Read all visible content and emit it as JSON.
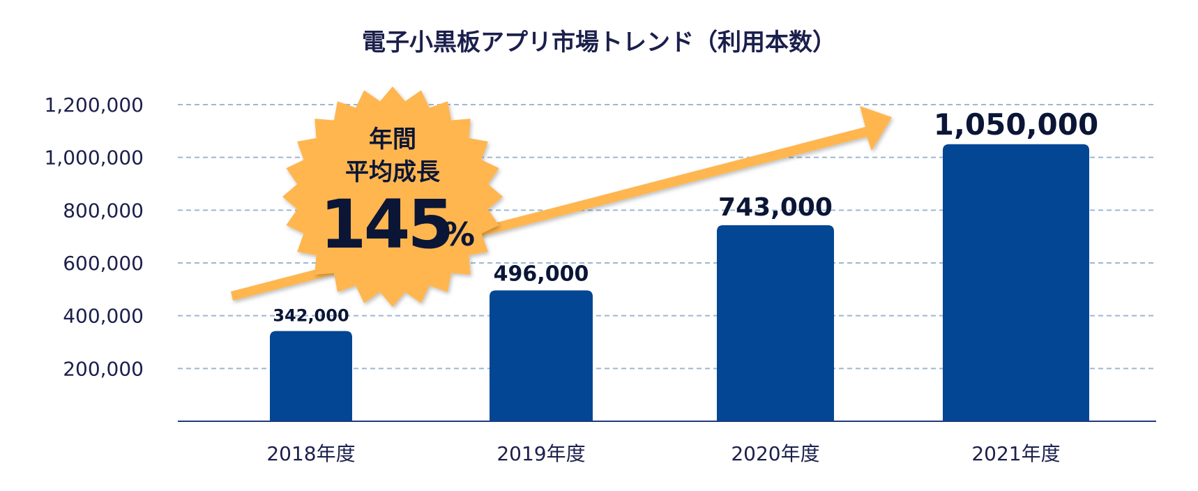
{
  "chart_data": {
    "type": "bar",
    "title": "電子小黒板アプリ市場トレンド（利用本数）",
    "categories": [
      "2018年度",
      "2019年度",
      "2020年度",
      "2021年度"
    ],
    "values": [
      342000,
      496000,
      743000,
      1050000
    ],
    "data_labels": [
      "342,000",
      "496,000",
      "743,000",
      "1,050,000"
    ],
    "yticks": [
      200000,
      400000,
      600000,
      800000,
      1000000,
      1200000
    ],
    "ytick_labels": [
      "200,000",
      "400,000",
      "600,000",
      "800,000",
      "1,000,000",
      "1,200,000"
    ],
    "ylim": [
      0,
      1200000
    ],
    "xlabel": "",
    "ylabel": "",
    "grid": true
  },
  "badge": {
    "line1": "年間",
    "line2": "平均成長",
    "value": "145",
    "unit": "%"
  },
  "colors": {
    "bar": "#034694",
    "axis": "#1f3a7a",
    "grid": "#9ab8d3",
    "arrow": "#ffb650",
    "badge": "#ffb650",
    "text": "#1b1f4b"
  }
}
